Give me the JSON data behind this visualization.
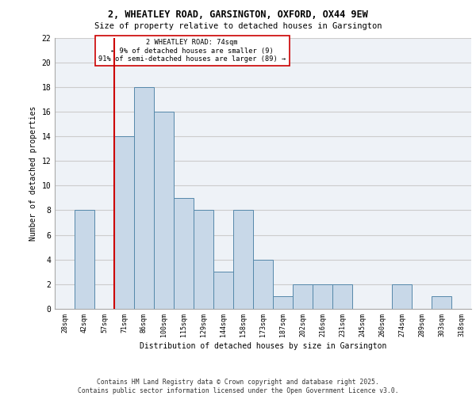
{
  "title1": "2, WHEATLEY ROAD, GARSINGTON, OXFORD, OX44 9EW",
  "title2": "Size of property relative to detached houses in Garsington",
  "xlabel": "Distribution of detached houses by size in Garsington",
  "ylabel": "Number of detached properties",
  "bin_labels": [
    "28sqm",
    "42sqm",
    "57sqm",
    "71sqm",
    "86sqm",
    "100sqm",
    "115sqm",
    "129sqm",
    "144sqm",
    "158sqm",
    "173sqm",
    "187sqm",
    "202sqm",
    "216sqm",
    "231sqm",
    "245sqm",
    "260sqm",
    "274sqm",
    "289sqm",
    "303sqm",
    "318sqm"
  ],
  "bar_values": [
    0,
    8,
    0,
    14,
    18,
    16,
    9,
    8,
    3,
    8,
    4,
    1,
    2,
    2,
    2,
    0,
    0,
    2,
    0,
    1,
    0
  ],
  "bar_color": "#c8d8e8",
  "bar_edge_color": "#5588aa",
  "vline_x": 2.5,
  "vline_color": "#cc0000",
  "annotation_text": "2 WHEATLEY ROAD: 74sqm\n← 9% of detached houses are smaller (9)\n91% of semi-detached houses are larger (89) →",
  "annotation_box_color": "#ffffff",
  "annotation_box_edgecolor": "#cc0000",
  "ylim": [
    0,
    22
  ],
  "yticks": [
    0,
    2,
    4,
    6,
    8,
    10,
    12,
    14,
    16,
    18,
    20,
    22
  ],
  "grid_color": "#cccccc",
  "bg_color": "#eef2f7",
  "footer": "Contains HM Land Registry data © Crown copyright and database right 2025.\nContains public sector information licensed under the Open Government Licence v3.0."
}
